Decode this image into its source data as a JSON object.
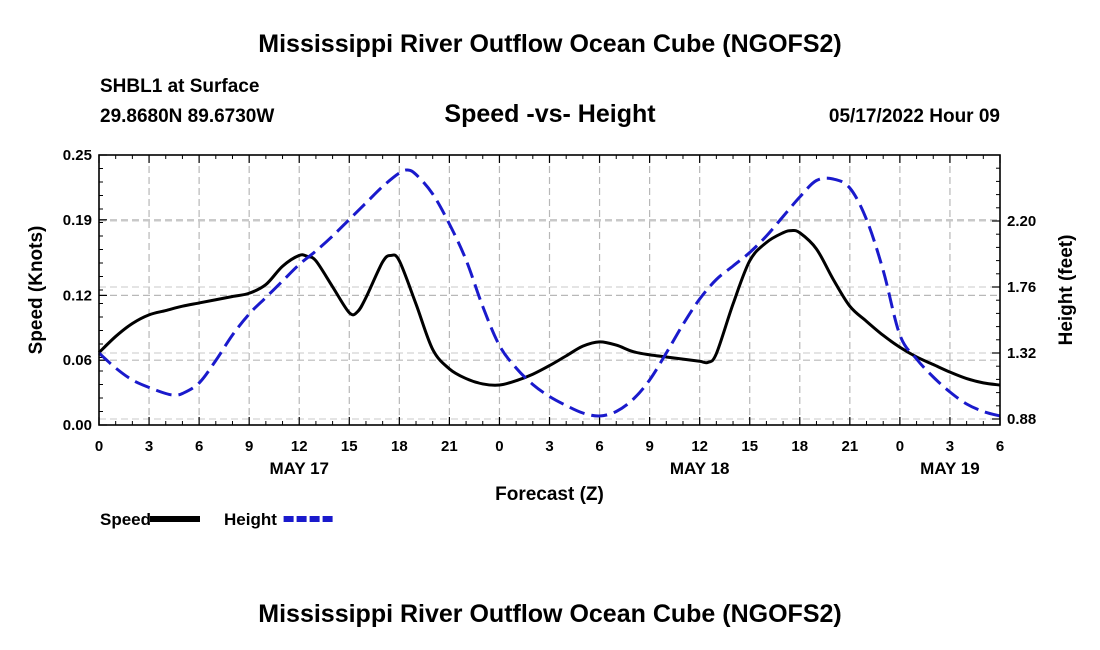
{
  "header": {
    "title": "Mississippi River Outflow Ocean Cube (NGOFS2)",
    "station": "SHBL1 at Surface",
    "coords": "29.8680N  89.6730W",
    "subtitle": "Speed -vs- Height",
    "timestamp": "05/17/2022 Hour 09"
  },
  "footer": {
    "title": "Mississippi River Outflow Ocean Cube (NGOFS2)"
  },
  "chart_data": {
    "type": "line",
    "title": "Speed -vs- Height",
    "xlabel": "Forecast (Z)",
    "ylabel": "Speed (Knots)",
    "y2label": "Height (feet)",
    "xlim": [
      0,
      54
    ],
    "ylim": [
      0,
      0.25
    ],
    "y2lim": [
      0.84,
      2.64
    ],
    "x_ticks": [
      0,
      3,
      6,
      9,
      12,
      15,
      18,
      21,
      24,
      27,
      30,
      33,
      36,
      39,
      42,
      45,
      48,
      51,
      54
    ],
    "x_tick_labels": [
      "0",
      "3",
      "6",
      "9",
      "12",
      "15",
      "18",
      "21",
      "0",
      "3",
      "6",
      "9",
      "12",
      "15",
      "18",
      "21",
      "0",
      "3",
      "6"
    ],
    "date_labels": [
      {
        "x": 12,
        "label": "MAY 17"
      },
      {
        "x": 36,
        "label": "MAY 18"
      },
      {
        "x": 51,
        "label": "MAY 19"
      }
    ],
    "y_ticks": [
      0.0,
      0.06,
      0.12,
      0.19,
      0.25
    ],
    "y_tick_labels": [
      "0.00",
      "0.06",
      "0.12",
      "0.19",
      "0.25"
    ],
    "y2_ticks": [
      0.88,
      1.32,
      1.76,
      2.2
    ],
    "y2_tick_labels": [
      "0.88",
      "1.32",
      "1.76",
      "2.20"
    ],
    "grid": true,
    "legend_position": "bottom-left",
    "series": [
      {
        "name": "Speed",
        "axis": "left",
        "color": "#000000",
        "style": "solid",
        "x": [
          0,
          1,
          2,
          3,
          4,
          5,
          6,
          7,
          8,
          9,
          10,
          11,
          12,
          12.5,
          13,
          14,
          15,
          15.5,
          16,
          17,
          17.5,
          18,
          19,
          20,
          21,
          22,
          23,
          24,
          25,
          26,
          27,
          28,
          29,
          30,
          31,
          32,
          33,
          34,
          35,
          36,
          36.5,
          37,
          38,
          39,
          40,
          41,
          41.5,
          42,
          43,
          44,
          45,
          46,
          47,
          48,
          49,
          50,
          51,
          52,
          53,
          54
        ],
        "values": [
          0.067,
          0.082,
          0.094,
          0.102,
          0.106,
          0.11,
          0.113,
          0.116,
          0.119,
          0.122,
          0.13,
          0.147,
          0.157,
          0.156,
          0.152,
          0.128,
          0.104,
          0.105,
          0.118,
          0.151,
          0.157,
          0.152,
          0.112,
          0.07,
          0.052,
          0.043,
          0.038,
          0.037,
          0.041,
          0.047,
          0.055,
          0.064,
          0.073,
          0.077,
          0.074,
          0.068,
          0.065,
          0.063,
          0.061,
          0.059,
          0.058,
          0.066,
          0.112,
          0.152,
          0.169,
          0.178,
          0.18,
          0.178,
          0.163,
          0.135,
          0.11,
          0.096,
          0.083,
          0.072,
          0.063,
          0.056,
          0.049,
          0.043,
          0.039,
          0.037
        ]
      },
      {
        "name": "Height",
        "axis": "right",
        "color": "#1a1acc",
        "style": "dashed",
        "x": [
          0,
          1,
          2,
          3,
          4,
          4.5,
          5,
          6,
          7,
          8,
          9,
          10,
          11,
          12,
          13,
          14,
          15,
          16,
          17,
          18,
          18.5,
          19,
          20,
          21,
          22,
          23,
          24,
          25,
          26,
          27,
          28,
          29,
          30,
          31,
          32,
          33,
          34,
          35,
          36,
          37,
          38,
          39,
          40,
          41,
          42,
          43,
          44,
          45,
          46,
          47,
          48,
          49,
          50,
          51,
          52,
          53,
          54
        ],
        "values": [
          1.32,
          1.22,
          1.14,
          1.09,
          1.05,
          1.04,
          1.05,
          1.12,
          1.27,
          1.44,
          1.58,
          1.69,
          1.8,
          1.91,
          2.0,
          2.1,
          2.21,
          2.32,
          2.43,
          2.52,
          2.54,
          2.51,
          2.38,
          2.18,
          1.94,
          1.63,
          1.37,
          1.22,
          1.11,
          1.03,
          0.97,
          0.92,
          0.9,
          0.93,
          1.01,
          1.14,
          1.32,
          1.51,
          1.68,
          1.81,
          1.9,
          1.99,
          2.1,
          2.23,
          2.36,
          2.47,
          2.48,
          2.42,
          2.21,
          1.87,
          1.44,
          1.28,
          1.16,
          1.06,
          0.98,
          0.93,
          0.9
        ]
      }
    ]
  }
}
